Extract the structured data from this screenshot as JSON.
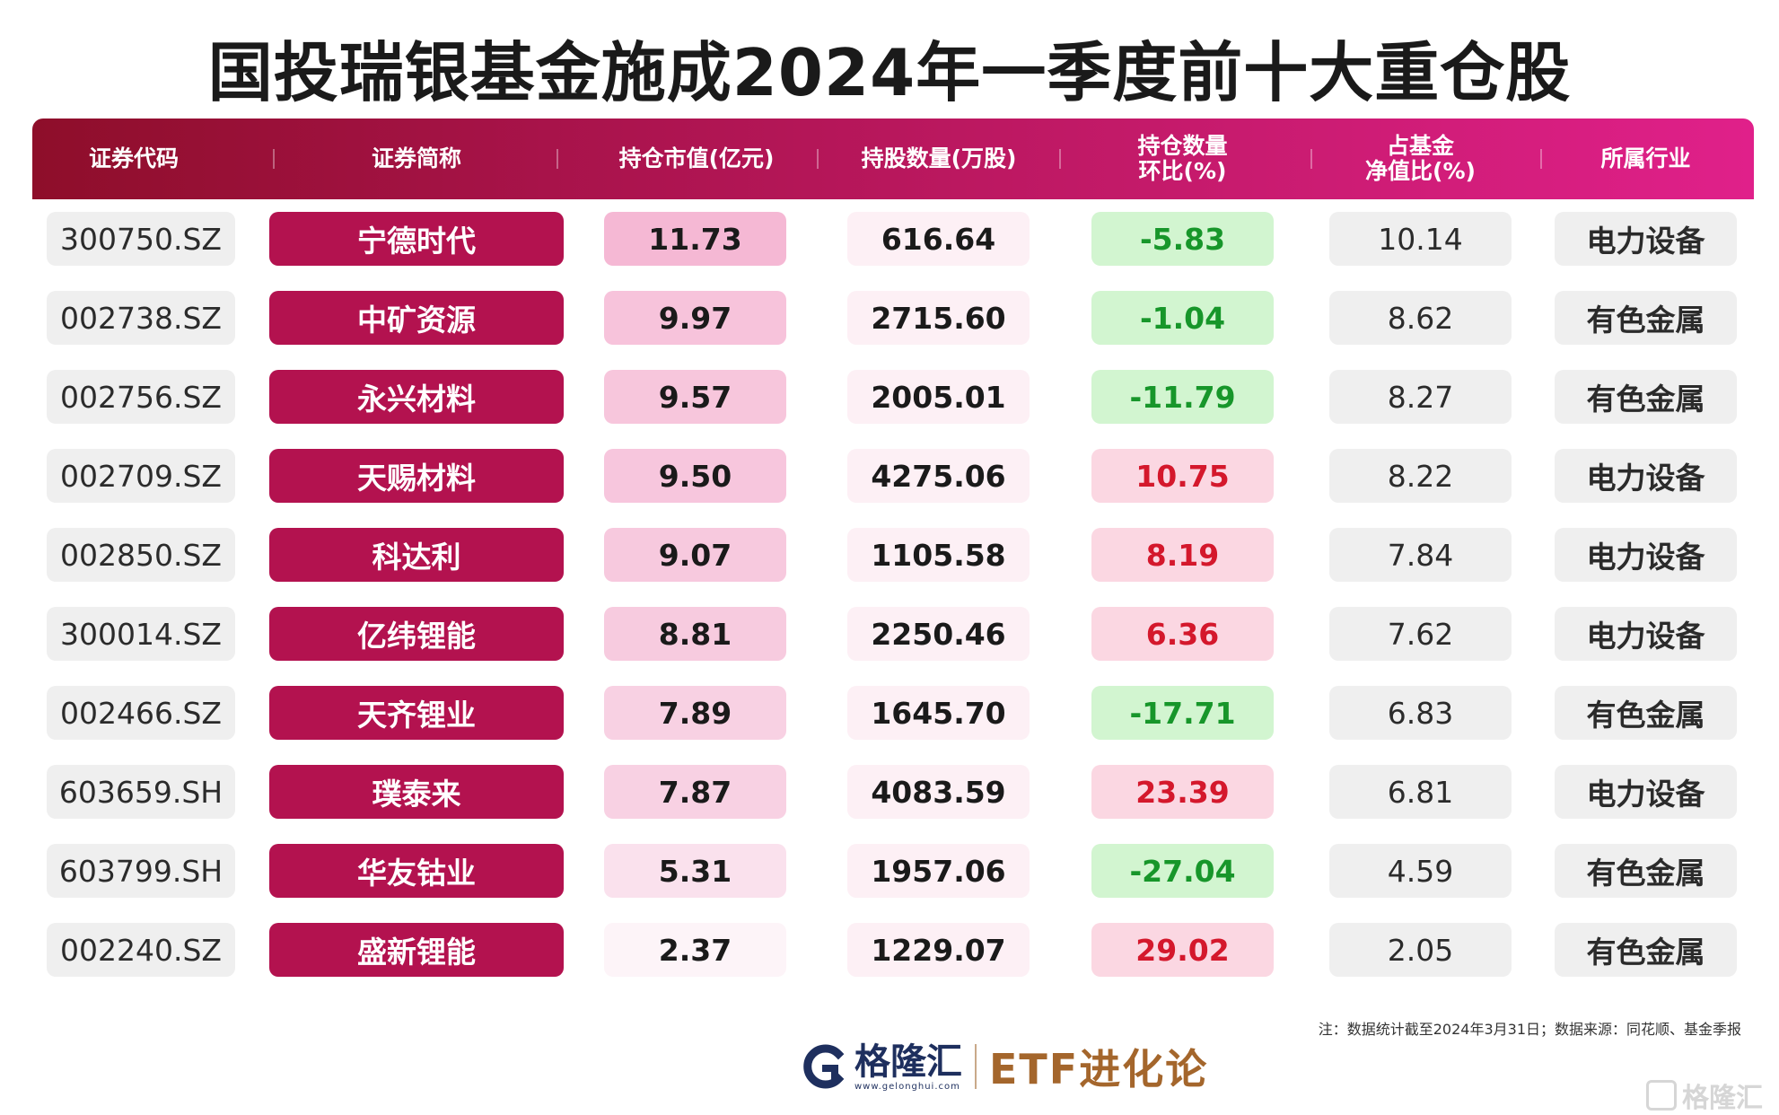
{
  "title": "国投瑞银基金施成2024年一季度前十大重仓股",
  "columns": [
    {
      "line1": "证券代码",
      "line2": ""
    },
    {
      "line1": "证券简称",
      "line2": ""
    },
    {
      "line1": "持仓市值(亿元)",
      "line2": ""
    },
    {
      "line1": "持股数量(万股)",
      "line2": ""
    },
    {
      "line1": "持仓数量",
      "line2": "环比(%)"
    },
    {
      "line1": "占基金",
      "line2": "净值比(%)"
    },
    {
      "line1": "所属行业",
      "line2": ""
    }
  ],
  "rows": [
    {
      "code": "300750.SZ",
      "name": "宁德时代",
      "value": "11.73",
      "qty": "616.64",
      "change": "-5.83",
      "pct": "10.14",
      "industry": "电力设备"
    },
    {
      "code": "002738.SZ",
      "name": "中矿资源",
      "value": "9.97",
      "qty": "2715.60",
      "change": "-1.04",
      "pct": "8.62",
      "industry": "有色金属"
    },
    {
      "code": "002756.SZ",
      "name": "永兴材料",
      "value": "9.57",
      "qty": "2005.01",
      "change": "-11.79",
      "pct": "8.27",
      "industry": "有色金属"
    },
    {
      "code": "002709.SZ",
      "name": "天赐材料",
      "value": "9.50",
      "qty": "4275.06",
      "change": "10.75",
      "pct": "8.22",
      "industry": "电力设备"
    },
    {
      "code": "002850.SZ",
      "name": "科达利",
      "value": "9.07",
      "qty": "1105.58",
      "change": "8.19",
      "pct": "7.84",
      "industry": "电力设备"
    },
    {
      "code": "300014.SZ",
      "name": "亿纬锂能",
      "value": "8.81",
      "qty": "2250.46",
      "change": "6.36",
      "pct": "7.62",
      "industry": "电力设备"
    },
    {
      "code": "002466.SZ",
      "name": "天齐锂业",
      "value": "7.89",
      "qty": "1645.70",
      "change": "-17.71",
      "pct": "6.83",
      "industry": "有色金属"
    },
    {
      "code": "603659.SH",
      "name": "璞泰来",
      "value": "7.87",
      "qty": "4083.59",
      "change": "23.39",
      "pct": "6.81",
      "industry": "电力设备"
    },
    {
      "code": "603799.SH",
      "name": "华友钴业",
      "value": "5.31",
      "qty": "1957.06",
      "change": "-27.04",
      "pct": "4.59",
      "industry": "有色金属"
    },
    {
      "code": "002240.SZ",
      "name": "盛新锂能",
      "value": "2.37",
      "qty": "1229.07",
      "change": "29.02",
      "pct": "2.05",
      "industry": "有色金属"
    }
  ],
  "note": "注：数据统计截至2024年3月31日；数据来源：同花顺、基金季报",
  "footer": {
    "logo_cn": "格隆汇",
    "logo_url": "www.gelonghui.com",
    "brand": "ETF进化论"
  },
  "watermark": "格隆汇",
  "colors": {
    "name_bg": "#b3124f",
    "negative_bg": "#d2f5d0",
    "negative_text": "#17962a",
    "positive_bg": "#fbd7e2",
    "positive_text": "#d4182c",
    "value_high": "#f5b8d4",
    "value_low": "#fdf4f8"
  }
}
